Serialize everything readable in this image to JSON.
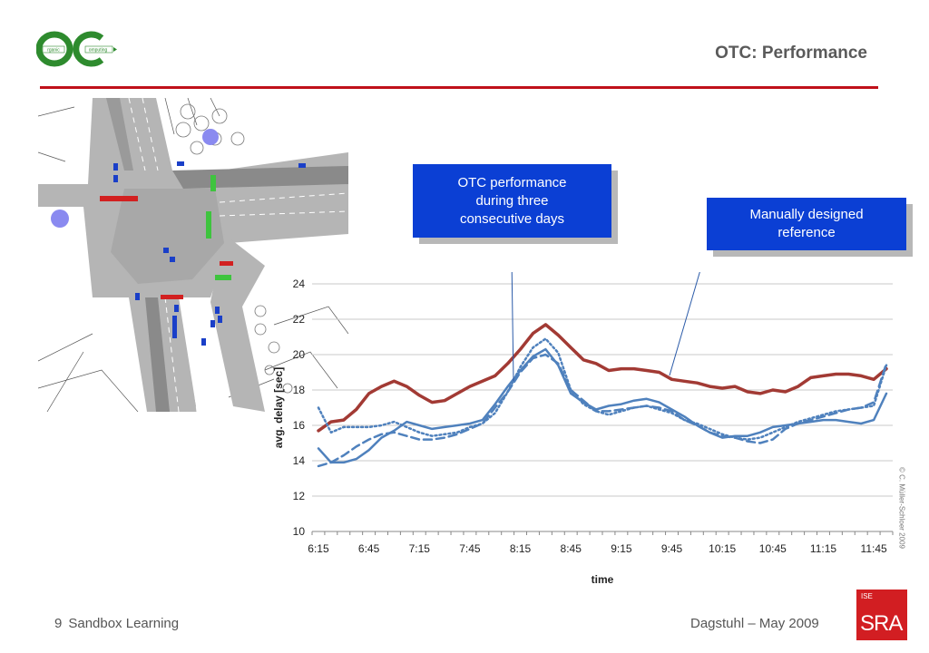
{
  "header": {
    "title": "OTC: Performance",
    "logo_text": "Organic Computing"
  },
  "callouts": {
    "otc": "OTC performance\nduring three\nconsecutive days",
    "manual": "Manually designed\nreference"
  },
  "copyright": "© C. Müller-Schloer 2009",
  "footer": {
    "page_number": "9",
    "section": "Sandbox Learning",
    "event": "Dagstuhl – May 2009",
    "logo_top": "ISE",
    "logo_main": "SRA"
  },
  "colors": {
    "accent_red": "#c0101a",
    "callout_blue": "#0b3fd4",
    "reference_series": "#a23a34",
    "otc_series": "#4f81bd"
  },
  "chart_data": {
    "type": "line",
    "title": "",
    "xlabel": "time",
    "ylabel": "avg. delay [sec]",
    "ylim": [
      10,
      24
    ],
    "yticks": [
      10,
      12,
      14,
      16,
      18,
      20,
      22,
      24
    ],
    "x": [
      "6:15",
      "6:22",
      "6:30",
      "6:37",
      "6:45",
      "6:52",
      "7:00",
      "7:07",
      "7:15",
      "7:22",
      "7:30",
      "7:37",
      "7:45",
      "7:52",
      "8:00",
      "8:07",
      "8:15",
      "8:22",
      "8:30",
      "8:37",
      "8:45",
      "8:52",
      "9:00",
      "9:07",
      "9:15",
      "9:22",
      "9:30",
      "9:37",
      "9:45",
      "9:52",
      "10:00",
      "10:07",
      "10:15",
      "10:22",
      "10:30",
      "10:37",
      "10:45",
      "10:52",
      "11:00",
      "11:07",
      "11:15",
      "11:22",
      "11:30",
      "11:37",
      "11:45",
      "11:52"
    ],
    "xtick_labels": [
      "6:15",
      "6:45",
      "7:15",
      "7:45",
      "8:15",
      "8:45",
      "9:15",
      "9:45",
      "10:15",
      "10:45",
      "11:15",
      "11:45"
    ],
    "grid": "horizontal",
    "series": [
      {
        "name": "",
        "style": "solid-thick",
        "color": "#a23a34",
        "values": [
          15.7,
          16.2,
          16.3,
          16.9,
          17.8,
          18.2,
          18.5,
          18.2,
          17.7,
          17.3,
          17.4,
          17.8,
          18.2,
          18.5,
          18.8,
          19.5,
          20.3,
          21.2,
          21.7,
          21.1,
          20.4,
          19.7,
          19.5,
          19.1,
          19.2,
          19.2,
          19.1,
          19.0,
          18.6,
          18.5,
          18.4,
          18.2,
          18.1,
          18.2,
          17.9,
          17.8,
          18.0,
          17.9,
          18.2,
          18.7,
          18.8,
          18.9,
          18.9,
          18.8,
          18.6,
          19.2
        ]
      },
      {
        "name": "",
        "style": "solid",
        "color": "#4f81bd",
        "values": [
          14.7,
          13.9,
          13.9,
          14.1,
          14.6,
          15.3,
          15.7,
          16.2,
          16.0,
          15.8,
          15.9,
          16.0,
          16.1,
          16.3,
          17.2,
          18.2,
          19.1,
          19.9,
          20.3,
          19.4,
          17.8,
          17.3,
          16.9,
          17.1,
          17.2,
          17.4,
          17.5,
          17.3,
          16.9,
          16.5,
          16.0,
          15.6,
          15.3,
          15.4,
          15.4,
          15.6,
          15.9,
          16.0,
          16.1,
          16.2,
          16.3,
          16.3,
          16.2,
          16.1,
          16.3,
          17.8
        ]
      },
      {
        "name": "",
        "style": "dashed",
        "color": "#4f81bd",
        "values": [
          13.7,
          13.9,
          14.3,
          14.8,
          15.2,
          15.5,
          15.6,
          15.4,
          15.2,
          15.2,
          15.3,
          15.5,
          15.8,
          16.1,
          17.0,
          17.9,
          19.0,
          19.8,
          20.0,
          19.5,
          18.0,
          17.4,
          16.8,
          16.8,
          16.9,
          17.0,
          17.1,
          17.0,
          16.8,
          16.3,
          16.0,
          15.6,
          15.4,
          15.3,
          15.1,
          15.0,
          15.2,
          15.8,
          16.1,
          16.3,
          16.5,
          16.7,
          16.9,
          17.0,
          17.3,
          19.5
        ]
      },
      {
        "name": "",
        "style": "dotted",
        "color": "#4f81bd",
        "values": [
          17.0,
          15.6,
          15.9,
          15.9,
          15.9,
          16.0,
          16.2,
          15.9,
          15.6,
          15.4,
          15.5,
          15.6,
          15.9,
          16.1,
          16.7,
          17.9,
          19.3,
          20.4,
          20.9,
          20.1,
          18.0,
          17.2,
          16.8,
          16.6,
          16.8,
          17.0,
          17.1,
          16.9,
          16.7,
          16.3,
          16.1,
          15.8,
          15.5,
          15.3,
          15.2,
          15.3,
          15.6,
          15.9,
          16.2,
          16.4,
          16.6,
          16.8,
          16.9,
          17.0,
          17.1,
          19.4
        ]
      }
    ]
  }
}
